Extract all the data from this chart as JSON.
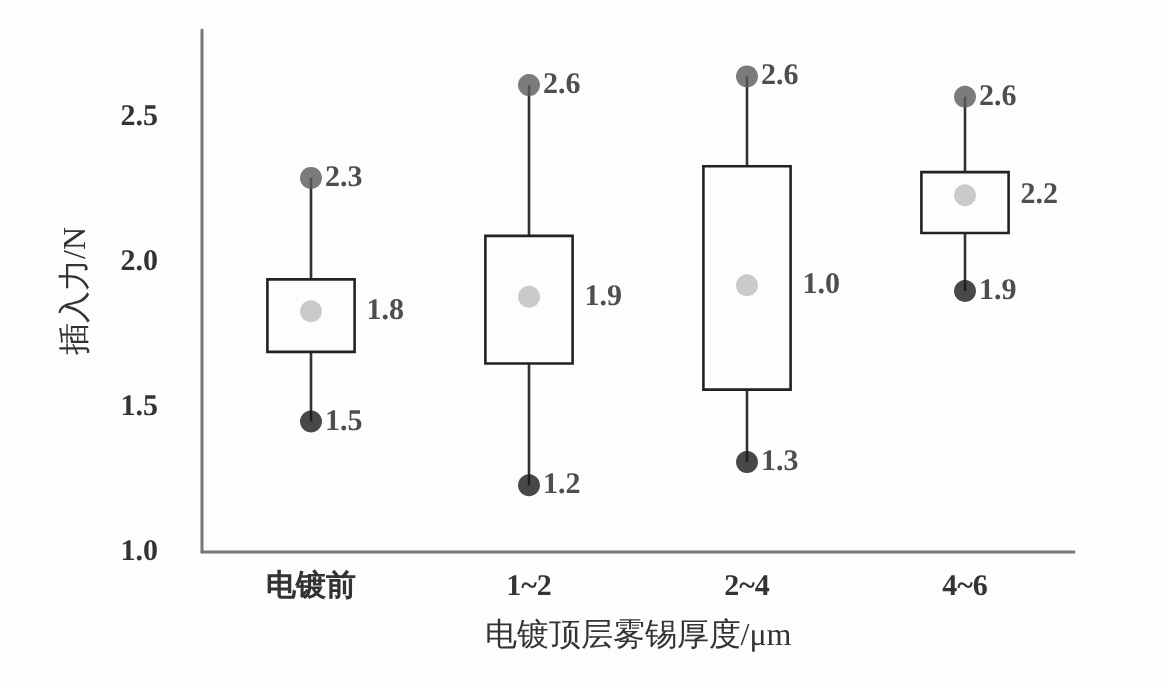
{
  "chart_data": {
    "type": "box",
    "xlabel": "电镀顶层雾锡厚度/μm",
    "ylabel": "插入力/N",
    "categories": [
      "电镀前",
      "1~2",
      "2~4",
      "4~6"
    ],
    "boxes": [
      {
        "low": 1.45,
        "q1": 1.69,
        "q3": 1.94,
        "high": 2.29,
        "mean": 1.83
      },
      {
        "low": 1.23,
        "q1": 1.65,
        "q3": 2.09,
        "high": 2.61,
        "mean": 1.88
      },
      {
        "low": 1.31,
        "q1": 1.56,
        "q3": 2.33,
        "high": 2.64,
        "mean": 1.92
      },
      {
        "low": 1.9,
        "q1": 2.1,
        "q3": 2.31,
        "high": 2.57,
        "mean": 2.23
      }
    ],
    "ylim": [
      1.0,
      2.8
    ],
    "yticks": [
      {
        "value": 1.0,
        "label": "1.0"
      },
      1.5,
      {
        "value": 2.0,
        "label": "2.0"
      },
      2.5
    ],
    "grid": false,
    "annotations": [
      {
        "text": "2.3",
        "x": "电镀前",
        "y": 2.29
      },
      "1.8",
      {
        "text": "1.5",
        "x": "电镀前",
        "y": 1.45
      },
      {
        "text": "2.6",
        "x": "1~2",
        "y": 2.61
      },
      "1.9",
      {
        "text": "1.2",
        "x": "1~2",
        "y": 1.23
      },
      {
        "text": "2.6",
        "x": "2~4",
        "y": 2.64
      },
      "1.0",
      {
        "text": "1.3",
        "x": "2~4",
        "y": 1.31
      },
      {
        "text": "2.6",
        "x": "4~6",
        "y": 2.57
      },
      "2.2",
      {
        "text": "1.9",
        "x": "4~6",
        "y": 1.9
      }
    ]
  }
}
